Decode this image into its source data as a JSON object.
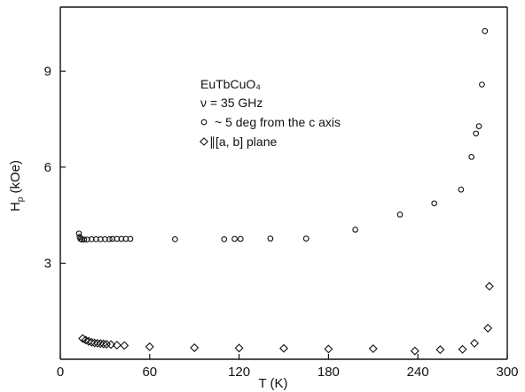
{
  "chart_data": {
    "type": "scatter",
    "xlabel": "T (K)",
    "ylabel": "Hp (kOe)",
    "ylabel_main": "H",
    "ylabel_sub": "p",
    "ylabel_unit": " (kOe)",
    "xlim": [
      0,
      300
    ],
    "ylim": [
      0,
      11.0
    ],
    "xticks": [
      0,
      60,
      120,
      180,
      240,
      300
    ],
    "yticks": [
      3,
      6,
      9
    ],
    "grid": false,
    "annotation": {
      "lines": [
        "EuTbCuO₄",
        "ν = 35 GHz",
        "~ 5 deg from the c axis",
        "∥[a, b]  plane"
      ]
    },
    "series": [
      {
        "name": "~ 5 deg from the c axis",
        "marker": "circle",
        "points": [
          [
            12.5,
            3.93
          ],
          [
            13,
            3.82
          ],
          [
            13.5,
            3.76
          ],
          [
            14.5,
            3.74
          ],
          [
            16,
            3.74
          ],
          [
            18,
            3.74
          ],
          [
            21,
            3.75
          ],
          [
            24,
            3.75
          ],
          [
            27,
            3.75
          ],
          [
            30,
            3.75
          ],
          [
            33,
            3.75
          ],
          [
            35,
            3.76
          ],
          [
            38,
            3.76
          ],
          [
            41,
            3.76
          ],
          [
            44,
            3.76
          ],
          [
            47,
            3.76
          ],
          [
            77,
            3.75
          ],
          [
            110,
            3.75
          ],
          [
            117,
            3.76
          ],
          [
            121,
            3.76
          ],
          [
            141,
            3.77
          ],
          [
            165,
            3.77
          ],
          [
            198,
            4.05
          ],
          [
            228,
            4.52
          ],
          [
            251,
            4.87
          ],
          [
            269,
            5.3
          ],
          [
            276,
            6.32
          ],
          [
            279,
            7.05
          ],
          [
            281,
            7.28
          ],
          [
            283,
            8.58
          ],
          [
            285,
            10.25
          ]
        ]
      },
      {
        "name": "∥[a, b]  plane",
        "marker": "diamond",
        "points": [
          [
            15,
            0.65
          ],
          [
            17,
            0.6
          ],
          [
            19,
            0.56
          ],
          [
            21,
            0.53
          ],
          [
            23,
            0.51
          ],
          [
            25,
            0.5
          ],
          [
            27,
            0.49
          ],
          [
            29,
            0.48
          ],
          [
            31,
            0.47
          ],
          [
            34,
            0.46
          ],
          [
            38,
            0.44
          ],
          [
            43,
            0.43
          ],
          [
            60,
            0.39
          ],
          [
            90,
            0.36
          ],
          [
            120,
            0.35
          ],
          [
            150,
            0.34
          ],
          [
            180,
            0.32
          ],
          [
            210,
            0.33
          ],
          [
            238,
            0.26
          ],
          [
            255,
            0.3
          ],
          [
            270,
            0.31
          ],
          [
            278,
            0.5
          ],
          [
            287,
            0.97
          ],
          [
            288,
            2.28
          ]
        ]
      }
    ]
  }
}
